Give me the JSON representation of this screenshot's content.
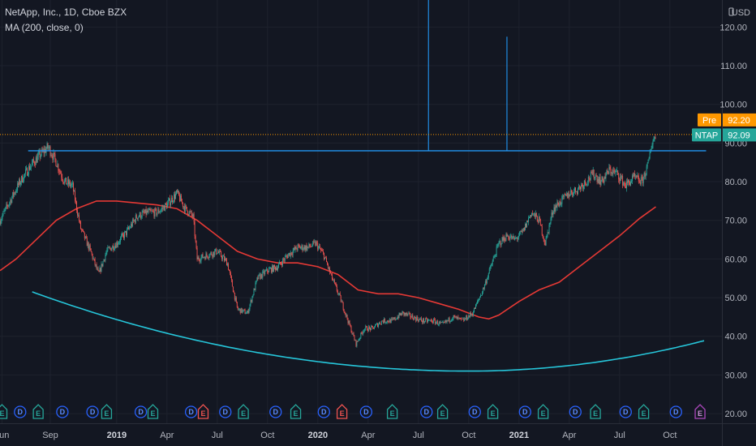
{
  "header": {
    "title": "NetApp, Inc., 1D, Cboe BZX",
    "indicator": "MA (200, close, 0)"
  },
  "colors": {
    "background": "#131722",
    "grid": "#1e222d",
    "up": "#26a69a",
    "down": "#ef5350",
    "ma": "#e53935",
    "trendline": "#2196f3",
    "curve": "#26c6da",
    "pre_tag": "#ff9800",
    "last_tag": "#26a69a"
  },
  "chart_data": {
    "type": "candlestick",
    "currency": "USD",
    "ylim": [
      17.5,
      127
    ],
    "y_ticks": [
      "20.00",
      "30.00",
      "40.00",
      "50.00",
      "60.00",
      "70.00",
      "80.00",
      "90.00",
      "100.00",
      "110.00",
      "120.00"
    ],
    "x_labels": [
      {
        "label": "Jun",
        "t": 2018.43
      },
      {
        "label": "Sep",
        "t": 2018.67
      },
      {
        "label": "2019",
        "t": 2019.0,
        "bold": true
      },
      {
        "label": "Apr",
        "t": 2019.25
      },
      {
        "label": "Jul",
        "t": 2019.5
      },
      {
        "label": "Oct",
        "t": 2019.75
      },
      {
        "label": "2020",
        "t": 2020.0,
        "bold": true
      },
      {
        "label": "Apr",
        "t": 2020.25
      },
      {
        "label": "Jul",
        "t": 2020.5
      },
      {
        "label": "Oct",
        "t": 2020.75
      },
      {
        "label": "2021",
        "t": 2021.0,
        "bold": true
      },
      {
        "label": "Apr",
        "t": 2021.25
      },
      {
        "label": "Jul",
        "t": 2021.5
      },
      {
        "label": "Oct",
        "t": 2021.75
      }
    ],
    "price_anchors": [
      [
        2018.42,
        70
      ],
      [
        2018.47,
        75
      ],
      [
        2018.52,
        80
      ],
      [
        2018.57,
        84
      ],
      [
        2018.62,
        87
      ],
      [
        2018.66,
        89
      ],
      [
        2018.7,
        85
      ],
      [
        2018.74,
        80
      ],
      [
        2018.78,
        79
      ],
      [
        2018.82,
        68
      ],
      [
        2018.87,
        62
      ],
      [
        2018.91,
        56
      ],
      [
        2018.95,
        62
      ],
      [
        2019.0,
        64
      ],
      [
        2019.05,
        67
      ],
      [
        2019.1,
        71
      ],
      [
        2019.15,
        72
      ],
      [
        2019.2,
        72
      ],
      [
        2019.25,
        74
      ],
      [
        2019.3,
        77
      ],
      [
        2019.34,
        73
      ],
      [
        2019.38,
        71
      ],
      [
        2019.4,
        60
      ],
      [
        2019.45,
        61
      ],
      [
        2019.5,
        62
      ],
      [
        2019.55,
        59
      ],
      [
        2019.6,
        47
      ],
      [
        2019.65,
        46
      ],
      [
        2019.7,
        55
      ],
      [
        2019.75,
        57
      ],
      [
        2019.8,
        58
      ],
      [
        2019.85,
        61
      ],
      [
        2019.9,
        63
      ],
      [
        2019.95,
        63
      ],
      [
        2019.99,
        64
      ],
      [
        2020.03,
        61
      ],
      [
        2020.07,
        55
      ],
      [
        2020.11,
        50
      ],
      [
        2020.15,
        44
      ],
      [
        2020.19,
        38
      ],
      [
        2020.23,
        42
      ],
      [
        2020.27,
        42
      ],
      [
        2020.32,
        44
      ],
      [
        2020.37,
        44
      ],
      [
        2020.42,
        46
      ],
      [
        2020.47,
        45
      ],
      [
        2020.52,
        44
      ],
      [
        2020.57,
        44
      ],
      [
        2020.62,
        43
      ],
      [
        2020.67,
        45
      ],
      [
        2020.72,
        44
      ],
      [
        2020.77,
        46
      ],
      [
        2020.82,
        52
      ],
      [
        2020.86,
        58
      ],
      [
        2020.9,
        64
      ],
      [
        2020.94,
        66
      ],
      [
        2020.98,
        65
      ],
      [
        2021.02,
        67
      ],
      [
        2021.06,
        72
      ],
      [
        2021.1,
        70
      ],
      [
        2021.13,
        64
      ],
      [
        2021.17,
        73
      ],
      [
        2021.21,
        75
      ],
      [
        2021.25,
        77
      ],
      [
        2021.29,
        78
      ],
      [
        2021.33,
        80
      ],
      [
        2021.37,
        82
      ],
      [
        2021.41,
        80
      ],
      [
        2021.45,
        83
      ],
      [
        2021.49,
        82
      ],
      [
        2021.53,
        79
      ],
      [
        2021.57,
        81
      ],
      [
        2021.61,
        80
      ],
      [
        2021.64,
        84
      ],
      [
        2021.66,
        90
      ],
      [
        2021.68,
        92.09
      ]
    ],
    "ma_200": [
      [
        2018.42,
        57
      ],
      [
        2018.5,
        60
      ],
      [
        2018.6,
        65
      ],
      [
        2018.7,
        70
      ],
      [
        2018.8,
        73
      ],
      [
        2018.9,
        75
      ],
      [
        2019.0,
        75
      ],
      [
        2019.1,
        74.5
      ],
      [
        2019.2,
        74
      ],
      [
        2019.3,
        73
      ],
      [
        2019.4,
        70
      ],
      [
        2019.5,
        66
      ],
      [
        2019.6,
        62
      ],
      [
        2019.7,
        60
      ],
      [
        2019.8,
        59
      ],
      [
        2019.9,
        59
      ],
      [
        2020.0,
        58
      ],
      [
        2020.1,
        56
      ],
      [
        2020.2,
        52
      ],
      [
        2020.3,
        51
      ],
      [
        2020.4,
        51
      ],
      [
        2020.5,
        50
      ],
      [
        2020.6,
        48.5
      ],
      [
        2020.7,
        47
      ],
      [
        2020.8,
        45
      ],
      [
        2020.85,
        44.5
      ],
      [
        2020.9,
        45.5
      ],
      [
        2021.0,
        49
      ],
      [
        2021.1,
        52
      ],
      [
        2021.2,
        54
      ],
      [
        2021.3,
        58
      ],
      [
        2021.4,
        62
      ],
      [
        2021.5,
        66
      ],
      [
        2021.6,
        70.5
      ],
      [
        2021.68,
        73.5
      ]
    ],
    "resistance_line": {
      "t0": 2018.56,
      "t1": 2021.93,
      "price": 88
    },
    "resistance_risers": [
      {
        "t": 2020.55,
        "top": 133
      },
      {
        "t": 2020.94,
        "top": 117.5
      }
    ],
    "cup_curve": {
      "t0": 2018.58,
      "p0": 51.5,
      "tmin": 2020.75,
      "pmin": 31,
      "t1": 2021.93,
      "p1": 39
    },
    "pre_price_line": 92.2,
    "tags": [
      {
        "label": "Pre",
        "value": "92.20",
        "price": 92.2,
        "color": "#ff9800"
      },
      {
        "label": "NTAP",
        "value": "92.09",
        "price": 92.09,
        "color": "#26a69a"
      }
    ],
    "events": [
      {
        "type": "E",
        "t": 2018.43,
        "kind": "earnings"
      },
      {
        "type": "D",
        "t": 2018.52,
        "kind": "dividend"
      },
      {
        "type": "E",
        "t": 2018.61,
        "kind": "earnings"
      },
      {
        "type": "D",
        "t": 2018.73,
        "kind": "dividend"
      },
      {
        "type": "D",
        "t": 2018.88,
        "kind": "dividend"
      },
      {
        "type": "E",
        "t": 2018.95,
        "kind": "earnings"
      },
      {
        "type": "D",
        "t": 2019.12,
        "kind": "dividend"
      },
      {
        "type": "E",
        "t": 2019.18,
        "kind": "earnings"
      },
      {
        "type": "D",
        "t": 2019.37,
        "kind": "dividend"
      },
      {
        "type": "E",
        "t": 2019.43,
        "kind": "earnings-miss"
      },
      {
        "type": "D",
        "t": 2019.54,
        "kind": "dividend"
      },
      {
        "type": "E",
        "t": 2019.63,
        "kind": "earnings"
      },
      {
        "type": "D",
        "t": 2019.79,
        "kind": "dividend"
      },
      {
        "type": "E",
        "t": 2019.89,
        "kind": "earnings"
      },
      {
        "type": "D",
        "t": 2020.03,
        "kind": "dividend"
      },
      {
        "type": "E",
        "t": 2020.12,
        "kind": "earnings-miss"
      },
      {
        "type": "D",
        "t": 2020.24,
        "kind": "dividend"
      },
      {
        "type": "E",
        "t": 2020.37,
        "kind": "earnings"
      },
      {
        "type": "D",
        "t": 2020.54,
        "kind": "dividend"
      },
      {
        "type": "E",
        "t": 2020.62,
        "kind": "earnings"
      },
      {
        "type": "D",
        "t": 2020.78,
        "kind": "dividend"
      },
      {
        "type": "E",
        "t": 2020.87,
        "kind": "earnings"
      },
      {
        "type": "D",
        "t": 2021.03,
        "kind": "dividend"
      },
      {
        "type": "E",
        "t": 2021.12,
        "kind": "earnings"
      },
      {
        "type": "D",
        "t": 2021.28,
        "kind": "dividend"
      },
      {
        "type": "E",
        "t": 2021.38,
        "kind": "earnings"
      },
      {
        "type": "D",
        "t": 2021.53,
        "kind": "dividend"
      },
      {
        "type": "E",
        "t": 2021.62,
        "kind": "earnings"
      },
      {
        "type": "D",
        "t": 2021.78,
        "kind": "dividend"
      },
      {
        "type": "E",
        "t": 2021.9,
        "kind": "earnings-upcoming"
      }
    ]
  }
}
